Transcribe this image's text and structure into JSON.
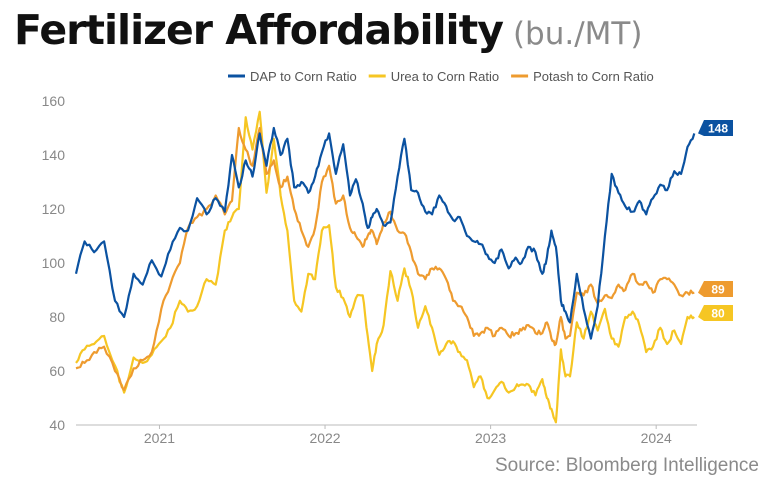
{
  "title": "Fertilizer Affordability",
  "subtitle": "(bu./MT)",
  "source": "Source: Bloomberg Intelligence",
  "colors": {
    "dap": "#0b52a1",
    "urea": "#f6c623",
    "potash": "#ee9b2f",
    "tick_text": "#888888",
    "axis": "#bbbbbb"
  },
  "chart_data": {
    "type": "line",
    "title": "Fertilizer Affordability",
    "subtitle": "(bu./MT)",
    "xlim": [
      "2020-07-01",
      "2024-03-31"
    ],
    "ylim": [
      40,
      160
    ],
    "y_ticks": [
      40,
      60,
      80,
      100,
      120,
      140,
      160
    ],
    "x_ticks": [
      {
        "date": "2021-01-01",
        "label": "2021"
      },
      {
        "date": "2022-01-01",
        "label": "2022"
      },
      {
        "date": "2023-01-01",
        "label": "2023"
      },
      {
        "date": "2024-01-01",
        "label": "2024"
      }
    ],
    "grid": false,
    "legend_position": "top-right",
    "series": [
      {
        "name": "DAP to Corn Ratio",
        "color": "#0b52a1",
        "end_label": "148",
        "x": [
          "2020-07-01",
          "2020-07-20",
          "2020-08-10",
          "2020-09-01",
          "2020-09-25",
          "2020-10-15",
          "2020-11-05",
          "2020-11-25",
          "2020-12-15",
          "2021-01-05",
          "2021-01-25",
          "2021-02-15",
          "2021-03-05",
          "2021-03-25",
          "2021-04-15",
          "2021-05-05",
          "2021-05-25",
          "2021-06-10",
          "2021-06-25",
          "2021-07-10",
          "2021-07-25",
          "2021-08-10",
          "2021-08-25",
          "2021-09-10",
          "2021-09-25",
          "2021-10-10",
          "2021-10-25",
          "2021-11-10",
          "2021-11-25",
          "2021-12-10",
          "2021-12-25",
          "2022-01-10",
          "2022-01-25",
          "2022-02-10",
          "2022-02-25",
          "2022-03-10",
          "2022-03-25",
          "2022-04-05",
          "2022-04-15",
          "2022-04-25",
          "2022-05-10",
          "2022-05-25",
          "2022-06-10",
          "2022-06-25",
          "2022-07-10",
          "2022-07-25",
          "2022-08-10",
          "2022-08-25",
          "2022-09-10",
          "2022-09-25",
          "2022-10-10",
          "2022-10-25",
          "2022-11-10",
          "2022-11-25",
          "2022-12-10",
          "2022-12-25",
          "2023-01-10",
          "2023-01-25",
          "2023-02-10",
          "2023-02-25",
          "2023-03-10",
          "2023-03-25",
          "2023-04-10",
          "2023-04-25",
          "2023-05-05",
          "2023-05-15",
          "2023-05-25",
          "2023-06-05",
          "2023-06-15",
          "2023-06-25",
          "2023-07-10",
          "2023-07-25",
          "2023-08-10",
          "2023-08-25",
          "2023-09-10",
          "2023-09-25",
          "2023-10-10",
          "2023-10-25",
          "2023-11-10",
          "2023-11-25",
          "2023-12-10",
          "2023-12-25",
          "2024-01-10",
          "2024-01-25",
          "2024-02-10",
          "2024-02-25",
          "2024-03-10",
          "2024-03-25"
        ],
        "values": [
          96,
          108,
          104,
          108,
          86,
          80,
          96,
          92,
          101,
          95,
          105,
          113,
          112,
          124,
          118,
          124,
          119,
          140,
          128,
          138,
          132,
          148,
          136,
          150,
          140,
          146,
          128,
          130,
          126,
          132,
          141,
          148,
          133,
          144,
          125,
          131,
          122,
          113,
          117,
          120,
          114,
          115,
          132,
          146,
          127,
          126,
          119,
          118,
          125,
          121,
          116,
          117,
          110,
          108,
          107,
          103,
          100,
          105,
          98,
          102,
          100,
          106,
          104,
          96,
          102,
          112,
          106,
          86,
          82,
          78,
          96,
          83,
          72,
          84,
          110,
          133,
          126,
          121,
          119,
          123,
          118,
          124,
          129,
          127,
          134,
          133,
          143,
          148
        ]
      },
      {
        "name": "Urea to Corn Ratio",
        "color": "#f6c623",
        "end_label": "80",
        "x": [
          "2020-07-01",
          "2020-07-20",
          "2020-08-10",
          "2020-09-01",
          "2020-09-25",
          "2020-10-15",
          "2020-11-05",
          "2020-11-25",
          "2020-12-15",
          "2021-01-05",
          "2021-01-25",
          "2021-02-15",
          "2021-03-05",
          "2021-03-25",
          "2021-04-15",
          "2021-05-05",
          "2021-05-25",
          "2021-06-10",
          "2021-06-25",
          "2021-07-10",
          "2021-07-25",
          "2021-08-10",
          "2021-08-25",
          "2021-09-10",
          "2021-09-25",
          "2021-10-10",
          "2021-10-25",
          "2021-11-10",
          "2021-11-25",
          "2021-12-10",
          "2021-12-25",
          "2022-01-10",
          "2022-01-25",
          "2022-02-10",
          "2022-02-25",
          "2022-03-10",
          "2022-03-25",
          "2022-04-05",
          "2022-04-15",
          "2022-04-25",
          "2022-05-10",
          "2022-05-25",
          "2022-06-10",
          "2022-06-25",
          "2022-07-10",
          "2022-07-25",
          "2022-08-10",
          "2022-08-25",
          "2022-09-10",
          "2022-09-25",
          "2022-10-10",
          "2022-10-25",
          "2022-11-10",
          "2022-11-25",
          "2022-12-10",
          "2022-12-25",
          "2023-01-10",
          "2023-01-25",
          "2023-02-10",
          "2023-02-25",
          "2023-03-10",
          "2023-03-25",
          "2023-04-10",
          "2023-04-25",
          "2023-05-05",
          "2023-05-15",
          "2023-05-25",
          "2023-06-05",
          "2023-06-15",
          "2023-06-25",
          "2023-07-10",
          "2023-07-25",
          "2023-08-10",
          "2023-08-25",
          "2023-09-10",
          "2023-09-25",
          "2023-10-10",
          "2023-10-25",
          "2023-11-10",
          "2023-11-25",
          "2023-12-10",
          "2023-12-25",
          "2024-01-10",
          "2024-01-25",
          "2024-02-10",
          "2024-02-25",
          "2024-03-10",
          "2024-03-25"
        ],
        "values": [
          63,
          68,
          70,
          73,
          62,
          52,
          65,
          63,
          66,
          71,
          76,
          86,
          82,
          84,
          94,
          92,
          112,
          117,
          120,
          154,
          142,
          156,
          126,
          146,
          125,
          112,
          86,
          82,
          96,
          94,
          112,
          114,
          91,
          87,
          80,
          87,
          88,
          73,
          60,
          70,
          77,
          97,
          86,
          98,
          90,
          76,
          84,
          76,
          66,
          70,
          71,
          67,
          64,
          54,
          58,
          50,
          53,
          56,
          52,
          54,
          55,
          55,
          51,
          57,
          50,
          46,
          41,
          68,
          58,
          58,
          78,
          72,
          82,
          75,
          83,
          72,
          69,
          80,
          82,
          77,
          67,
          69,
          76,
          70,
          75,
          70,
          80,
          80
        ]
      },
      {
        "name": "Potash to Corn Ratio",
        "color": "#ee9b2f",
        "end_label": "89",
        "x": [
          "2020-07-01",
          "2020-07-20",
          "2020-08-10",
          "2020-09-01",
          "2020-09-25",
          "2020-10-15",
          "2020-11-05",
          "2020-11-25",
          "2020-12-15",
          "2021-01-05",
          "2021-01-25",
          "2021-02-15",
          "2021-03-05",
          "2021-03-25",
          "2021-04-15",
          "2021-05-05",
          "2021-05-25",
          "2021-06-10",
          "2021-06-25",
          "2021-07-10",
          "2021-07-25",
          "2021-08-10",
          "2021-08-25",
          "2021-09-10",
          "2021-09-25",
          "2021-10-10",
          "2021-10-25",
          "2021-11-10",
          "2021-11-25",
          "2021-12-10",
          "2021-12-25",
          "2022-01-10",
          "2022-01-25",
          "2022-02-10",
          "2022-02-25",
          "2022-03-10",
          "2022-03-25",
          "2022-04-05",
          "2022-04-15",
          "2022-04-25",
          "2022-05-10",
          "2022-05-25",
          "2022-06-10",
          "2022-06-25",
          "2022-07-10",
          "2022-07-25",
          "2022-08-10",
          "2022-08-25",
          "2022-09-10",
          "2022-09-25",
          "2022-10-10",
          "2022-10-25",
          "2022-11-10",
          "2022-11-25",
          "2022-12-10",
          "2022-12-25",
          "2023-01-10",
          "2023-01-25",
          "2023-02-10",
          "2023-02-25",
          "2023-03-10",
          "2023-03-25",
          "2023-04-10",
          "2023-04-25",
          "2023-05-05",
          "2023-05-15",
          "2023-05-25",
          "2023-06-05",
          "2023-06-15",
          "2023-06-25",
          "2023-07-10",
          "2023-07-25",
          "2023-08-10",
          "2023-08-25",
          "2023-09-10",
          "2023-09-25",
          "2023-10-10",
          "2023-10-25",
          "2023-11-10",
          "2023-11-25",
          "2023-12-10",
          "2023-12-25",
          "2024-01-10",
          "2024-01-25",
          "2024-02-10",
          "2024-02-25",
          "2024-03-10",
          "2024-03-25"
        ],
        "values": [
          61,
          63,
          67,
          69,
          60,
          53,
          61,
          64,
          67,
          83,
          92,
          100,
          113,
          117,
          120,
          125,
          118,
          123,
          150,
          142,
          136,
          150,
          133,
          138,
          128,
          132,
          120,
          112,
          106,
          113,
          130,
          136,
          122,
          125,
          113,
          110,
          106,
          110,
          112,
          107,
          115,
          119,
          112,
          111,
          104,
          96,
          94,
          98,
          98,
          94,
          86,
          84,
          80,
          73,
          74,
          76,
          73,
          76,
          73,
          74,
          75,
          77,
          74,
          74,
          78,
          72,
          70,
          80,
          72,
          73,
          89,
          88,
          92,
          85,
          88,
          87,
          92,
          90,
          96,
          92,
          93,
          89,
          94,
          94,
          92,
          88,
          89,
          89
        ]
      }
    ]
  }
}
